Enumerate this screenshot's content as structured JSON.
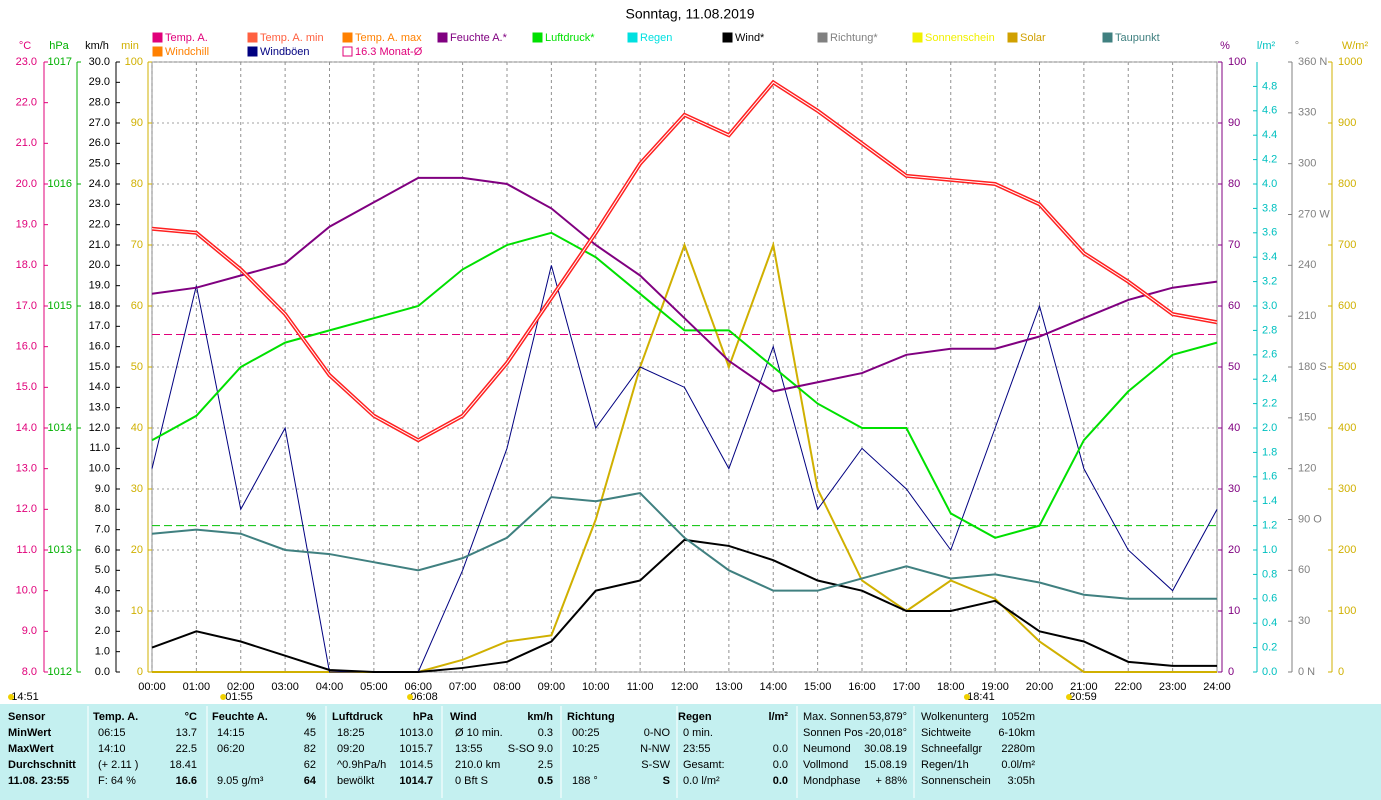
{
  "chart_data": {
    "type": "line",
    "title": "Sonntag, 11.08.2019",
    "x": [
      0,
      1,
      2,
      3,
      4,
      5,
      6,
      7,
      8,
      9,
      10,
      11,
      12,
      13,
      14,
      15,
      16,
      17,
      18,
      19,
      20,
      21,
      22,
      23,
      24
    ],
    "xlim": [
      0,
      24
    ],
    "xticks": [
      {
        "value": 0,
        "label": "00:00"
      },
      {
        "value": 1,
        "label": "01:00"
      },
      {
        "value": 2,
        "label": "02:00"
      },
      {
        "value": 3,
        "label": "03:00"
      },
      {
        "value": 4,
        "label": "04:00"
      },
      {
        "value": 5,
        "label": "05:00"
      },
      {
        "value": 6,
        "label": "06:00"
      },
      {
        "value": 7,
        "label": "07:00"
      },
      {
        "value": 8,
        "label": "08:00"
      },
      {
        "value": 9,
        "label": "09:00"
      },
      {
        "value": 10,
        "label": "10:00"
      },
      {
        "value": 11,
        "label": "11:00"
      },
      {
        "value": 12,
        "label": "12:00"
      },
      {
        "value": 13,
        "label": "13:00"
      },
      {
        "value": 14,
        "label": "14:00"
      },
      {
        "value": 15,
        "label": "15:00"
      },
      {
        "value": 16,
        "label": "16:00"
      },
      {
        "value": 17,
        "label": "17:00"
      },
      {
        "value": 18,
        "label": "18:00"
      },
      {
        "value": 19,
        "label": "19:00"
      },
      {
        "value": 20,
        "label": "20:00"
      },
      {
        "value": 21,
        "label": "21:00"
      },
      {
        "value": 22,
        "label": "22:00"
      },
      {
        "value": 23,
        "label": "23:00"
      },
      {
        "value": 24,
        "label": "24:00"
      }
    ],
    "grid": true,
    "axes": [
      {
        "unit": "°C",
        "color": "#e0007a",
        "lim": [
          8,
          23
        ],
        "ticks": [
          {
            "value": 8,
            "label": "8.0"
          },
          {
            "value": 9,
            "label": "9.0"
          },
          {
            "value": 10,
            "label": "10.0"
          },
          {
            "value": 11,
            "label": "11.0"
          },
          {
            "value": 12,
            "label": "12.0"
          },
          {
            "value": 13,
            "label": "13.0"
          },
          {
            "value": 14,
            "label": "14.0"
          },
          {
            "value": 15,
            "label": "15.0"
          },
          {
            "value": 16,
            "label": "16.0"
          },
          {
            "value": 17,
            "label": "17.0"
          },
          {
            "value": 18,
            "label": "18.0"
          },
          {
            "value": 19,
            "label": "19.0"
          },
          {
            "value": 20,
            "label": "20.0"
          },
          {
            "value": 21,
            "label": "21.0"
          },
          {
            "value": 22,
            "label": "22.0"
          },
          {
            "value": 23,
            "label": "23.0"
          }
        ]
      },
      {
        "unit": "hPa",
        "color": "#00b000",
        "lim": [
          1012,
          1017
        ],
        "ticks": [
          1012,
          1013,
          1014,
          1015,
          1016,
          1017
        ]
      },
      {
        "unit": "km/h",
        "color": "#000000",
        "lim": [
          0,
          30
        ],
        "ticks": [
          {
            "value": 0,
            "label": "0.0"
          },
          {
            "value": 1,
            "label": "1.0"
          },
          {
            "value": 2,
            "label": "2.0"
          },
          {
            "value": 3,
            "label": "3.0"
          },
          {
            "value": 4,
            "label": "4.0"
          },
          {
            "value": 5,
            "label": "5.0"
          },
          {
            "value": 6,
            "label": "6.0"
          },
          {
            "value": 7,
            "label": "7.0"
          },
          {
            "value": 8,
            "label": "8.0"
          },
          {
            "value": 9,
            "label": "9.0"
          },
          {
            "value": 10,
            "label": "10.0"
          },
          {
            "value": 11,
            "label": "11.0"
          },
          {
            "value": 12,
            "label": "12.0"
          },
          {
            "value": 13,
            "label": "13.0"
          },
          {
            "value": 14,
            "label": "14.0"
          },
          {
            "value": 15,
            "label": "15.0"
          },
          {
            "value": 16,
            "label": "16.0"
          },
          {
            "value": 17,
            "label": "17.0"
          },
          {
            "value": 18,
            "label": "18.0"
          },
          {
            "value": 19,
            "label": "19.0"
          },
          {
            "value": 20,
            "label": "20.0"
          },
          {
            "value": 21,
            "label": "21.0"
          },
          {
            "value": 22,
            "label": "22.0"
          },
          {
            "value": 23,
            "label": "23.0"
          },
          {
            "value": 24,
            "label": "24.0"
          },
          {
            "value": 25,
            "label": "25.0"
          },
          {
            "value": 26,
            "label": "26.0"
          },
          {
            "value": 27,
            "label": "27.0"
          },
          {
            "value": 28,
            "label": "28.0"
          },
          {
            "value": 29,
            "label": "29.0"
          },
          {
            "value": 30,
            "label": "30.0"
          }
        ]
      },
      {
        "unit": "min",
        "color": "#d0b000",
        "lim": [
          0,
          100
        ],
        "ticks": [
          0,
          10,
          20,
          30,
          40,
          50,
          60,
          70,
          80,
          90,
          100
        ]
      },
      {
        "unit": "%",
        "color": "#800080",
        "lim": [
          0,
          100
        ],
        "ticks": [
          0,
          10,
          20,
          30,
          40,
          50,
          60,
          70,
          80,
          90,
          100
        ]
      },
      {
        "unit": "l/m²",
        "color": "#00c0c0",
        "lim": [
          0,
          5
        ],
        "ticks": [
          {
            "value": 0,
            "label": "0.0"
          },
          0.2,
          0.4,
          0.6,
          0.8,
          {
            "value": 1,
            "label": "1.0"
          },
          1.2,
          1.4,
          1.6,
          1.8,
          {
            "value": 2,
            "label": "2.0"
          },
          2.2,
          2.4,
          2.6,
          2.8,
          {
            "value": 3,
            "label": "3.0"
          },
          3.2,
          3.4,
          3.6,
          3.8,
          {
            "value": 4,
            "label": "4.0"
          },
          4.2,
          4.4,
          4.6,
          4.8
        ]
      },
      {
        "unit": "°",
        "color": "#808080",
        "lim": [
          0,
          360
        ],
        "ticks": [
          {
            "value": 0,
            "label": "0 N"
          },
          30,
          60,
          {
            "value": 90,
            "label": "90 O"
          },
          120,
          150,
          {
            "value": 180,
            "label": "180 S"
          },
          210,
          240,
          {
            "value": 270,
            "label": "270 W"
          },
          300,
          330,
          {
            "value": 360,
            "label": "360 N"
          }
        ]
      },
      {
        "unit": "W/m²",
        "color": "#d0b000",
        "lim": [
          0,
          1000
        ],
        "ticks": [
          0,
          100,
          200,
          300,
          400,
          500,
          600,
          700,
          800,
          900,
          1000
        ]
      }
    ],
    "series": [
      {
        "name": "Solar",
        "color": "#d0b000",
        "axis": 7,
        "values": [
          0,
          0,
          0,
          0,
          0,
          0,
          0,
          20,
          50,
          60,
          250,
          500,
          700,
          500,
          700,
          300,
          150,
          100,
          150,
          120,
          50,
          0,
          0,
          0,
          0
        ]
      },
      {
        "name": "Windböen",
        "color": "#000080",
        "axis": 2,
        "values": [
          10,
          19,
          8,
          12,
          0,
          0,
          0,
          5,
          11,
          20,
          12,
          15,
          14,
          10,
          16,
          8,
          11,
          9,
          6,
          12,
          18,
          10,
          6,
          4,
          8
        ]
      },
      {
        "name": "Wind*",
        "color": "#000000",
        "axis": 2,
        "values": [
          1.2,
          2.0,
          1.5,
          0.8,
          0.1,
          0,
          0,
          0.2,
          0.5,
          1.5,
          4.0,
          4.5,
          6.5,
          6.2,
          5.5,
          4.5,
          4.0,
          3.0,
          3.0,
          3.5,
          2.0,
          1.5,
          0.5,
          0.3,
          0.3
        ]
      },
      {
        "name": "Taupunkt",
        "color": "#408080",
        "axis": 0,
        "values": [
          11.4,
          11.5,
          11.4,
          11.0,
          10.9,
          10.7,
          10.5,
          10.8,
          11.3,
          12.3,
          12.2,
          12.4,
          11.3,
          10.5,
          10.0,
          10.0,
          10.3,
          10.6,
          10.3,
          10.4,
          10.2,
          9.9,
          9.8,
          9.8,
          9.8
        ]
      },
      {
        "name": "Luftdruck*",
        "color": "#00e000",
        "axis": 1,
        "values": [
          1013.9,
          1014.1,
          1014.5,
          1014.7,
          1014.8,
          1014.9,
          1015.0,
          1015.3,
          1015.5,
          1015.6,
          1015.4,
          1015.1,
          1014.8,
          1014.8,
          1014.5,
          1014.2,
          1014.0,
          1014.0,
          1013.3,
          1013.1,
          1013.2,
          1013.9,
          1014.3,
          1014.6,
          1014.7
        ]
      },
      {
        "name": "Feuchte A.*",
        "color": "#800080",
        "axis": 4,
        "values": [
          62,
          63,
          65,
          67,
          73,
          77,
          81,
          81,
          80,
          76,
          70,
          65,
          58,
          51,
          46,
          47.5,
          49,
          52,
          53,
          53,
          55,
          58,
          61,
          63,
          64
        ]
      },
      {
        "name": "Temp. A.",
        "color": "#ff2020",
        "axis": 0,
        "values": [
          18.9,
          18.8,
          17.9,
          16.8,
          15.3,
          14.3,
          13.7,
          14.3,
          15.6,
          17.2,
          18.8,
          20.5,
          21.7,
          21.2,
          22.5,
          21.8,
          21.0,
          20.2,
          20.1,
          20.0,
          19.5,
          18.3,
          17.6,
          16.8,
          16.6
        ]
      }
    ],
    "references": [
      {
        "name": "16.3 Monat-Ø",
        "axis": 0,
        "value": 16.3,
        "color": "#e0007a"
      },
      {
        "axis": 1,
        "value": 1013.2,
        "color": "#00c000"
      }
    ],
    "legend": [
      {
        "name": "Temp. A.",
        "color": "#e0007a"
      },
      {
        "name": "Temp. A. min",
        "color": "#ff6040"
      },
      {
        "name": "Temp. A. max",
        "color": "#ff8000"
      },
      {
        "name": "Feuchte A.*",
        "color": "#800080"
      },
      {
        "name": "Luftdruck*",
        "color": "#00e000"
      },
      {
        "name": "Regen",
        "color": "#00e0e0"
      },
      {
        "name": "Wind*",
        "color": "#000000"
      },
      {
        "name": "Richtung*",
        "color": "#808080"
      },
      {
        "name": "Sonnenschein",
        "color": "#f0f000"
      },
      {
        "name": "Solar",
        "color": "#d0a000"
      },
      {
        "name": "Taupunkt",
        "color": "#408080"
      },
      {
        "name": "Windchill",
        "color": "#ff8000"
      },
      {
        "name": "Windböen",
        "color": "#000080"
      },
      {
        "name": "16.3 Monat-Ø",
        "color": "#e0007a"
      }
    ],
    "annotations": [
      {
        "text": "14:51",
        "at": null
      },
      {
        "text": "-01:55",
        "at": 1.92
      },
      {
        "text": "06:08",
        "at": 6.13
      },
      {
        "text": "18:41",
        "at": 18.68
      },
      {
        "text": "20:59",
        "at": 20.98
      }
    ]
  },
  "table": {
    "rows": [
      [
        "Sensor",
        "Temp. A.",
        "°C",
        "Feuchte A.",
        "%",
        "Luftdruck",
        "hPa",
        "Wind",
        "km/h",
        "Richtung",
        null,
        "Regen",
        "l/m²"
      ],
      [
        "MinWert",
        "06:15",
        "13.7",
        "14:15",
        "45",
        "18:25",
        "1013.0",
        "Ø 10 min.",
        "0.3",
        "00:25",
        "0-NO",
        "0 min.",
        null
      ],
      [
        "MaxWert",
        "14:10",
        "22.5",
        "06:20",
        "82",
        "09:20",
        "1015.7",
        "13:55",
        "S-SO 9.0",
        "10:25",
        "N-NW",
        "23:55",
        "0.0"
      ],
      [
        "Durchschnitt",
        "(+ 2.11 )",
        "18.41",
        null,
        "62",
        "^0.9hPa/h",
        "1014.5",
        "210.0 km",
        "2.5",
        null,
        "S-SW",
        "Gesamt:",
        "0.0"
      ],
      [
        "11.08. 23:55",
        "F: 64 %",
        "16.6",
        "9.05 g/m³",
        "64",
        "bewölkt",
        "1014.7",
        "0 Bft S",
        "0.5",
        "188 °",
        "S",
        "0.0 l/m²",
        "0.0"
      ]
    ],
    "info": [
      [
        [
          "Max. Sonnen",
          "53,879°"
        ],
        [
          "Sonnen Pos",
          "-20,018°"
        ],
        [
          "Neumond",
          "30.08.19"
        ],
        [
          "Vollmond",
          "15.08.19"
        ],
        [
          "Mondphase",
          "+ 88%"
        ]
      ],
      [
        [
          "Wolkenunterg",
          "1052m"
        ],
        [
          "Sichtweite",
          "6-10km"
        ],
        [
          "Schneefallgr",
          "2280m"
        ],
        [
          "Regen/1h",
          "0.0l/m²"
        ],
        [
          "Sonnenschein",
          "3:05h"
        ]
      ]
    ]
  }
}
